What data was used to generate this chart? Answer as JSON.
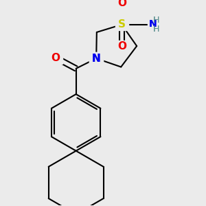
{
  "bg_color": "#ebebeb",
  "atom_colors": {
    "C": "#000000",
    "N": "#0000ee",
    "O": "#ee0000",
    "S": "#cccc00",
    "H": "#5c9090"
  },
  "bond_color": "#000000",
  "bond_width": 1.5,
  "figsize": [
    3.0,
    3.0
  ],
  "dpi": 100
}
